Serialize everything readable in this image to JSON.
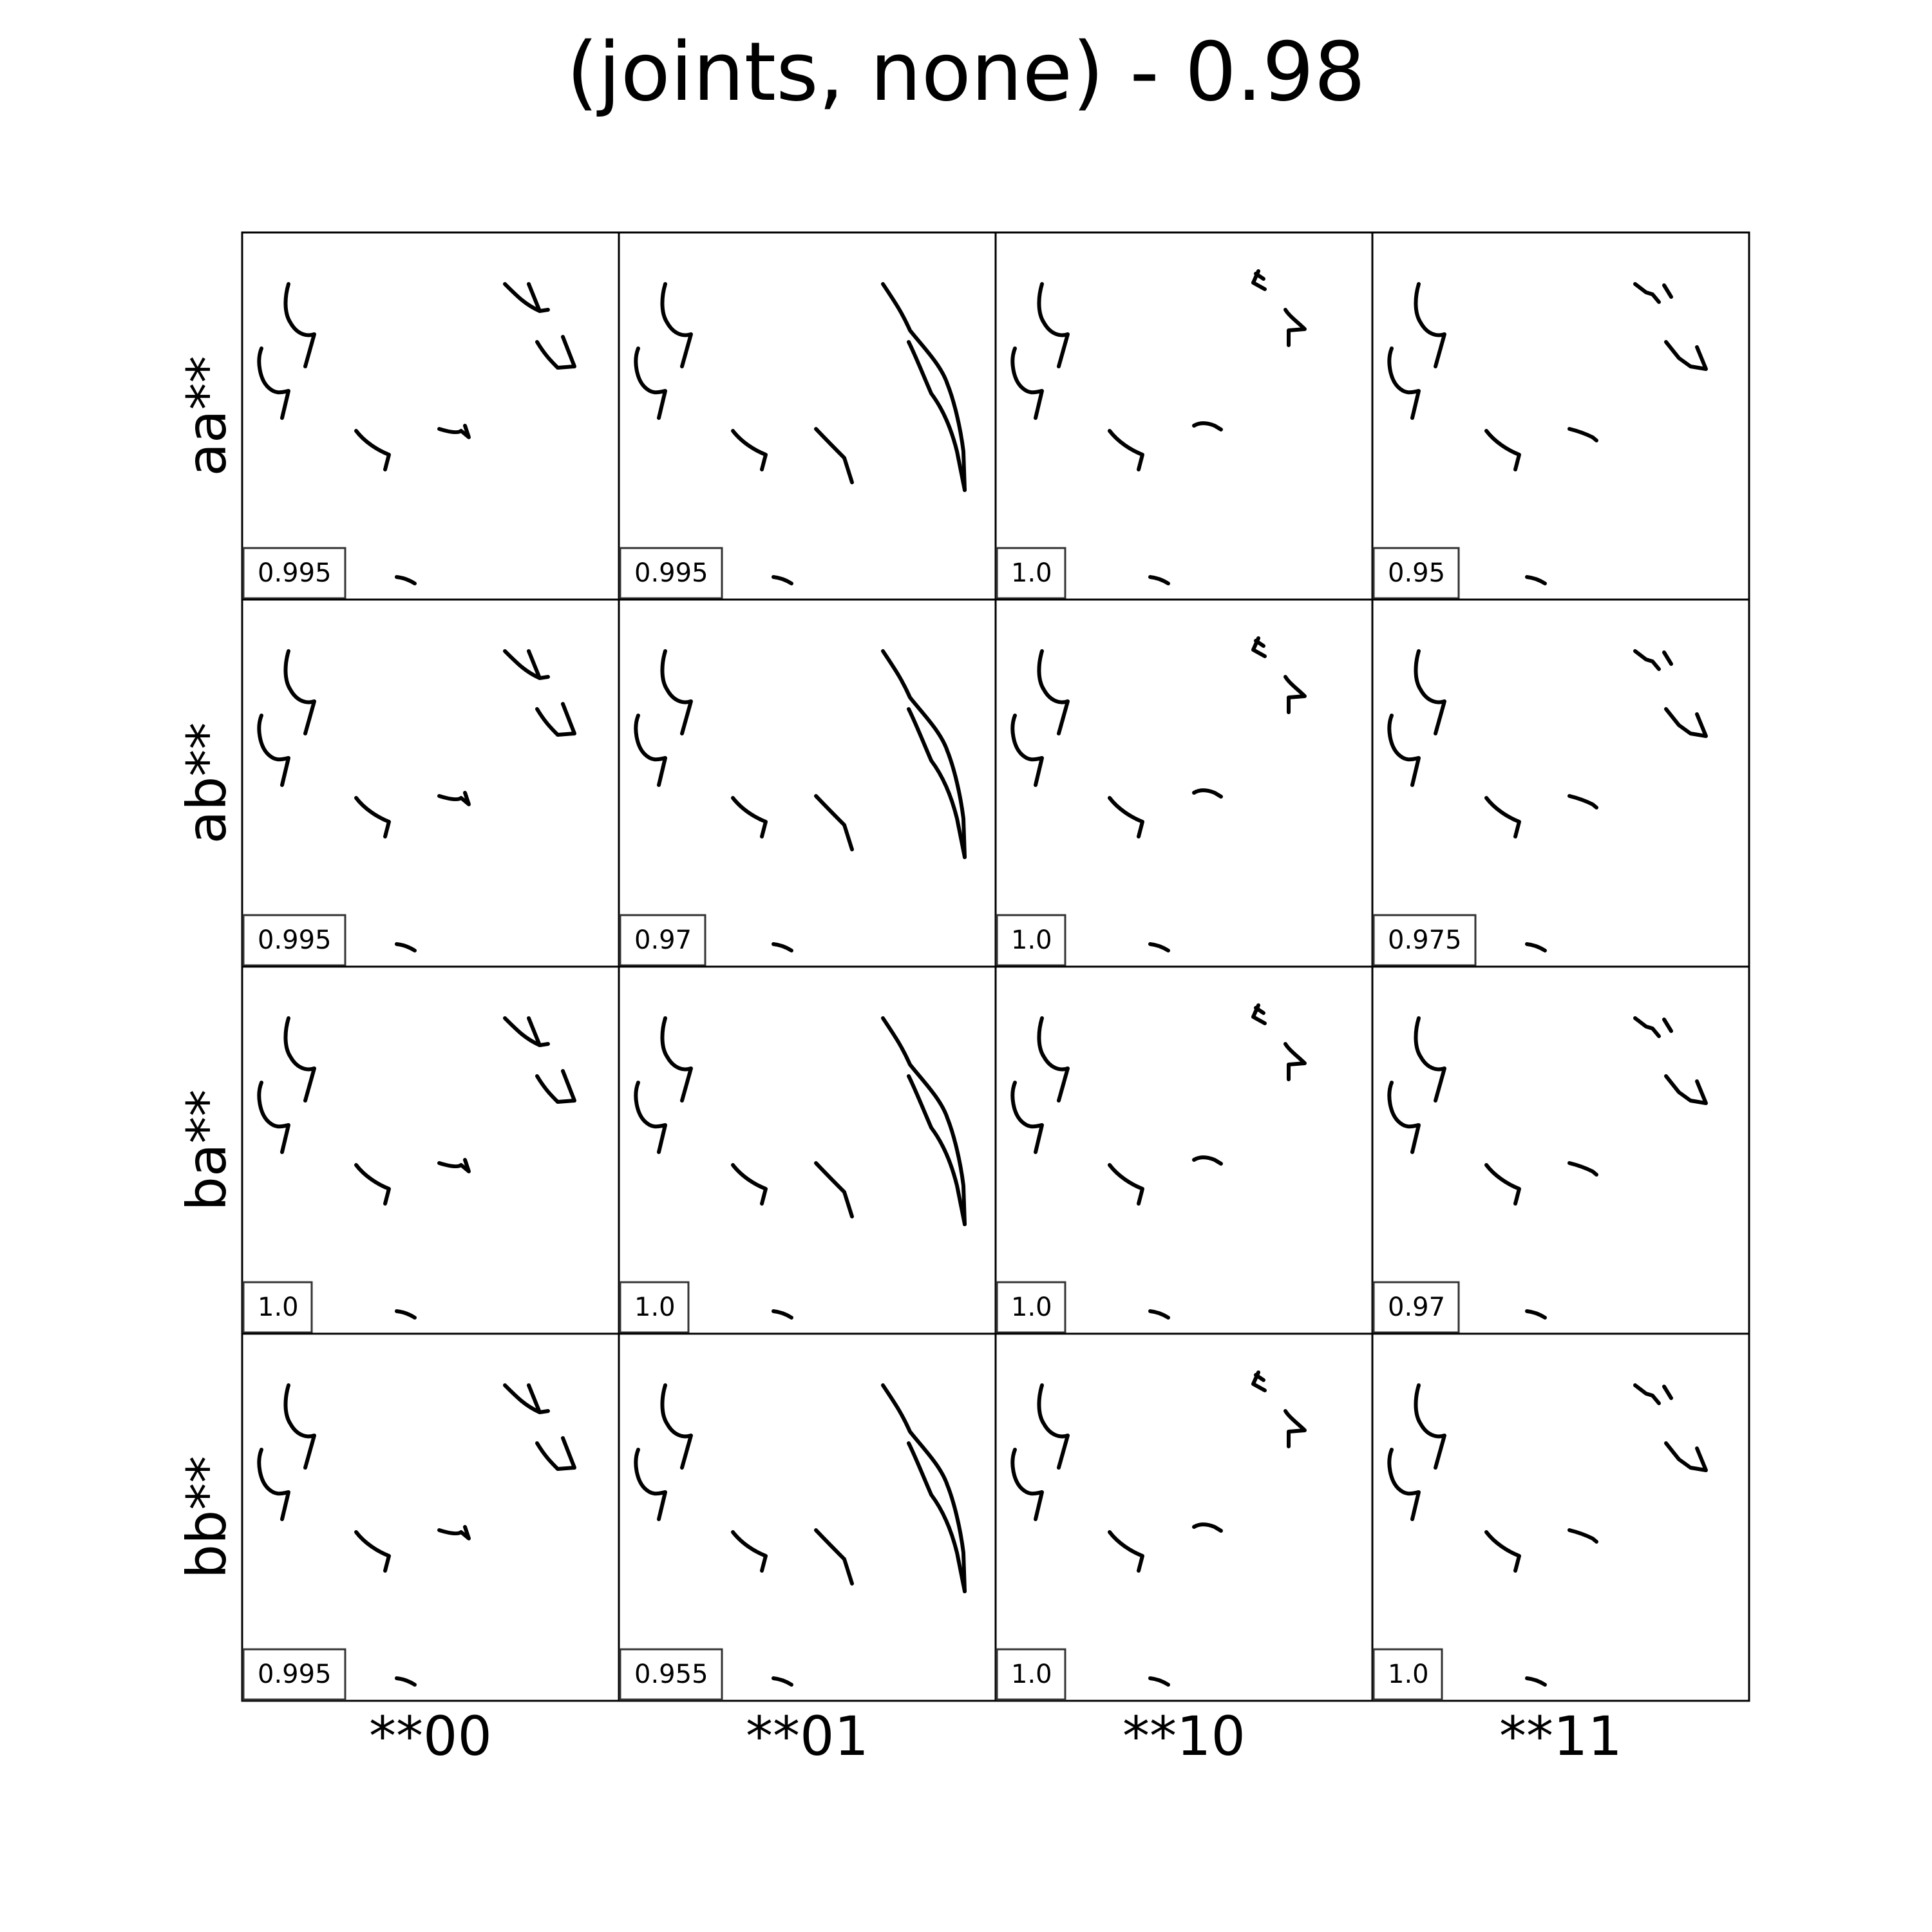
{
  "title": "(joints, none) - 0.98",
  "chart_data": {
    "type": "grid",
    "row_labels": [
      "aa**",
      "ab**",
      "ba**",
      "bb**"
    ],
    "col_labels": [
      "**00",
      "**01",
      "**10",
      "**11"
    ],
    "scores": [
      [
        "0.995",
        "0.995",
        "1.0",
        "0.95"
      ],
      [
        "0.995",
        "0.97",
        "1.0",
        "0.975"
      ],
      [
        "1.0",
        "1.0",
        "1.0",
        "0.97"
      ],
      [
        "0.995",
        "0.955",
        "1.0",
        "1.0"
      ]
    ],
    "grid": false,
    "legend": "none"
  }
}
